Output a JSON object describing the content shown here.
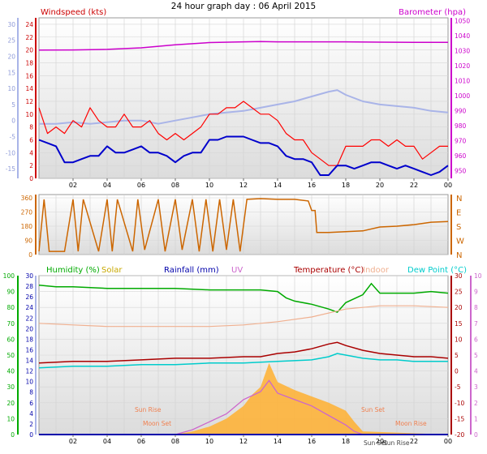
{
  "page_title": "24 hour graph day : 06 April 2015",
  "colors": {
    "wind_avg": "#0000cc",
    "wind_gust": "#ff0000",
    "baro": "#cc00cc",
    "direction": "#cc6600",
    "humidity": "#00aa00",
    "solar": "#ffb030",
    "rain": "#0000aa",
    "uv": "#cc66cc",
    "temp": "#aa0000",
    "indoor": "#f0b090",
    "dewpoint": "#00cccc",
    "temp_left_axis": "#a9b4e8",
    "baro_right_axis": "#cc00cc"
  },
  "chart_data": [
    {
      "type": "line",
      "title": "",
      "left_label": "Windspeed (kts)",
      "right_label": "Barometer (hpa)",
      "x_ticks": [
        "02",
        "04",
        "06",
        "08",
        "10",
        "12",
        "14",
        "16",
        "18",
        "20",
        "22",
        "00"
      ],
      "left_ticks": [
        0,
        2,
        4,
        6,
        8,
        10,
        12,
        14,
        16,
        18,
        20,
        22,
        24
      ],
      "outer_left_ticks": [
        -15,
        -10,
        -5,
        0,
        5,
        10,
        15,
        20,
        25,
        30
      ],
      "right_ticks": [
        950,
        960,
        970,
        980,
        990,
        1000,
        1010,
        1020,
        1030,
        1040,
        1050
      ],
      "xlim": [
        0,
        24
      ],
      "ylim": [
        0,
        25
      ],
      "series": [
        {
          "name": "Barometer (hpa)",
          "axis": "right",
          "x": [
            0,
            2,
            4,
            6,
            8,
            10,
            12,
            13,
            14,
            16,
            18,
            20,
            22,
            24
          ],
          "y": [
            1030.5,
            1030.6,
            1031,
            1032,
            1034,
            1035.5,
            1036,
            1036.2,
            1036,
            1036,
            1036,
            1035.8,
            1035.6,
            1035.7
          ]
        },
        {
          "name": "Wind gust",
          "axis": "left",
          "x": [
            0,
            0.5,
            1,
            1.5,
            2,
            2.5,
            3,
            3.5,
            4,
            4.5,
            5,
            5.5,
            6,
            6.5,
            7,
            7.5,
            8,
            8.5,
            9,
            9.5,
            10,
            10.5,
            11,
            11.5,
            12,
            12.5,
            13,
            13.5,
            14,
            14.5,
            15,
            15.5,
            16,
            16.5,
            17,
            17.5,
            18,
            18.5,
            19,
            19.5,
            20,
            20.5,
            21,
            21.5,
            22,
            22.5,
            23,
            23.5,
            24
          ],
          "y": [
            11,
            7,
            8,
            7,
            9,
            8,
            11,
            9,
            8,
            8,
            10,
            8,
            8,
            9,
            7,
            6,
            7,
            6,
            7,
            8,
            10,
            10,
            11,
            11,
            12,
            11,
            10,
            10,
            9,
            7,
            6,
            6,
            4,
            3,
            2,
            2,
            5,
            5,
            5,
            6,
            6,
            5,
            6,
            5,
            5,
            3,
            4,
            5,
            5
          ]
        },
        {
          "name": "Wind average",
          "axis": "left",
          "x": [
            0,
            0.5,
            1,
            1.5,
            2,
            2.5,
            3,
            3.5,
            4,
            4.5,
            5,
            5.5,
            6,
            6.5,
            7,
            7.5,
            8,
            8.5,
            9,
            9.5,
            10,
            10.5,
            11,
            11.5,
            12,
            12.5,
            13,
            13.5,
            14,
            14.5,
            15,
            15.5,
            16,
            16.5,
            17,
            17.5,
            18,
            18.5,
            19,
            19.5,
            20,
            20.5,
            21,
            21.5,
            22,
            22.5,
            23,
            23.5,
            24
          ],
          "y": [
            6,
            5.5,
            5,
            2.5,
            2.5,
            3,
            3.5,
            3.5,
            5,
            4,
            4,
            4.5,
            5,
            4,
            4,
            3.5,
            2.5,
            3.5,
            4,
            4,
            6,
            6,
            6.5,
            6.5,
            6.5,
            6,
            5.5,
            5.5,
            5,
            3.5,
            3,
            3,
            2.5,
            0.5,
            0.5,
            2,
            2,
            1.5,
            2,
            2.5,
            2.5,
            2,
            1.5,
            2,
            1.5,
            1,
            0.5,
            1,
            2
          ]
        },
        {
          "name": "Temperature (left outer axis)",
          "axis": "outer-left",
          "x": [
            0,
            1,
            2,
            3,
            4,
            5,
            6,
            7,
            8,
            9,
            10,
            11,
            12,
            13,
            14,
            15,
            16,
            17,
            17.5,
            18,
            19,
            20,
            21,
            22,
            23,
            24
          ],
          "y": [
            -1,
            -1,
            -0.5,
            -1,
            -0.5,
            0,
            0,
            -1,
            0,
            1,
            2,
            2.5,
            3,
            4,
            5,
            6,
            7.5,
            9,
            9.5,
            8,
            6,
            5,
            4.5,
            4,
            3,
            2.5
          ]
        }
      ]
    },
    {
      "type": "line",
      "title": "",
      "left_ticks": [
        0,
        90,
        180,
        270,
        360
      ],
      "right_ticks": [
        "N",
        "W",
        "S",
        "E",
        "N"
      ],
      "xlim": [
        0,
        24
      ],
      "ylim": [
        0,
        360
      ],
      "series": [
        {
          "name": "Wind direction",
          "x": [
            0,
            0.3,
            0.6,
            1.5,
            2,
            2.3,
            2.6,
            3.5,
            4,
            4.3,
            4.6,
            5.5,
            5.8,
            6.2,
            7,
            7.4,
            8,
            8.4,
            9,
            9.4,
            9.8,
            10.2,
            10.6,
            11,
            11.4,
            11.8,
            12.2,
            13,
            14,
            15,
            15.8,
            16,
            16.2,
            16.3,
            17,
            18,
            19,
            20,
            21,
            22,
            23,
            24
          ],
          "y": [
            20,
            350,
            20,
            20,
            350,
            20,
            350,
            20,
            350,
            20,
            350,
            20,
            350,
            30,
            350,
            20,
            350,
            30,
            350,
            20,
            350,
            20,
            350,
            30,
            350,
            20,
            350,
            355,
            350,
            350,
            340,
            280,
            280,
            140,
            140,
            145,
            150,
            175,
            180,
            190,
            205,
            210
          ]
        }
      ]
    },
    {
      "type": "line",
      "title": "",
      "labels": [
        "Humidity (%)",
        "Solar",
        "Rainfall (mm)",
        "UV",
        "Temperature (°C)",
        "Indoor",
        "Dew Point (°C)"
      ],
      "humidity_ticks": [
        0,
        10,
        20,
        30,
        40,
        50,
        60,
        70,
        80,
        90,
        100
      ],
      "rain_ticks": [
        0,
        2,
        4,
        6,
        8,
        10,
        12,
        14,
        16,
        18,
        20,
        22,
        24,
        26,
        28,
        30
      ],
      "temp_ticks": [
        -20,
        -15,
        -10,
        -5,
        0,
        5,
        10,
        15,
        20,
        25,
        30
      ],
      "uv_ticks": [
        0,
        1,
        2,
        3,
        4,
        5,
        6,
        7,
        8,
        9,
        10
      ],
      "x_ticks": [
        "02",
        "04",
        "06",
        "08",
        "10",
        "12",
        "14",
        "16",
        "18",
        "20",
        "22",
        "00"
      ],
      "annotations": [
        "Sun Rise",
        "Moon Set",
        "Sun Set",
        "Moon Rise",
        "Sun Set",
        "Sun Rise"
      ],
      "xlim": [
        0,
        24
      ],
      "series": [
        {
          "name": "Humidity (%)",
          "axis": "humidity",
          "x": [
            0,
            1,
            2,
            4,
            6,
            8,
            10,
            12,
            13,
            14,
            14.5,
            15,
            16,
            17,
            17.5,
            18,
            19,
            19.5,
            20,
            21,
            22,
            23,
            24
          ],
          "y": [
            94,
            93,
            93,
            92,
            92,
            92,
            91,
            91,
            91,
            90,
            86,
            84,
            82,
            79,
            77,
            83,
            88,
            95,
            89,
            89,
            89,
            90,
            89
          ]
        },
        {
          "name": "Indoor",
          "axis": "temp",
          "x": [
            0,
            2,
            4,
            6,
            8,
            10,
            12,
            14,
            16,
            18,
            20,
            22,
            24
          ],
          "y": [
            15,
            14.5,
            14,
            14,
            14,
            14,
            14.5,
            15.5,
            17,
            19.5,
            20.5,
            20.5,
            20
          ]
        },
        {
          "name": "Temperature (°C)",
          "axis": "temp",
          "x": [
            0,
            2,
            4,
            6,
            8,
            10,
            12,
            13,
            14,
            15,
            16,
            17,
            17.5,
            18,
            19,
            20,
            21,
            22,
            23,
            24
          ],
          "y": [
            2.5,
            3,
            3,
            3.5,
            4,
            4,
            4.5,
            4.5,
            5.5,
            6,
            7,
            8.5,
            9,
            8,
            6.5,
            5.5,
            5,
            4.5,
            4.5,
            4
          ]
        },
        {
          "name": "Dew Point (°C)",
          "axis": "temp",
          "x": [
            0,
            2,
            4,
            6,
            8,
            10,
            12,
            14,
            16,
            17,
            17.5,
            18,
            19,
            20,
            21,
            22,
            23,
            24
          ],
          "y": [
            1,
            1.5,
            1.5,
            2,
            2,
            2.5,
            2.5,
            3,
            3.5,
            4.5,
            5.5,
            5,
            4,
            3.5,
            3.5,
            3,
            3,
            3
          ]
        },
        {
          "name": "Solar",
          "axis": "humidity",
          "x": [
            0,
            8,
            9,
            10,
            11,
            12,
            12.5,
            13,
            13.5,
            14,
            15,
            16,
            17,
            18,
            18.5,
            19,
            24
          ],
          "y": [
            0,
            0,
            2,
            5,
            10,
            18,
            25,
            30,
            45,
            33,
            28,
            24,
            20,
            15,
            8,
            2,
            0
          ]
        },
        {
          "name": "UV",
          "axis": "uv",
          "x": [
            0,
            8,
            9,
            10,
            11,
            12,
            13,
            13.5,
            14,
            15,
            16,
            17,
            18,
            18.5,
            19,
            24
          ],
          "y": [
            0,
            0,
            0.3,
            0.8,
            1.3,
            2.2,
            2.7,
            3.4,
            2.6,
            2.2,
            1.8,
            1.2,
            0.6,
            0.2,
            0,
            0
          ]
        },
        {
          "name": "Rainfall (mm)",
          "axis": "rain",
          "x": [
            0,
            24
          ],
          "y": [
            0,
            0
          ]
        }
      ]
    }
  ]
}
